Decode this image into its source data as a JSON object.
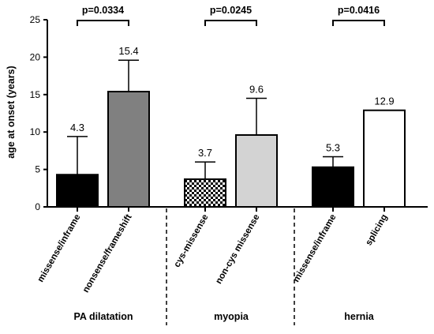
{
  "chart_data": {
    "type": "bar",
    "title": "",
    "xlabel": "",
    "ylabel": "age at onset (years)",
    "ylim": [
      0,
      25
    ],
    "yticks": [
      0,
      5,
      10,
      15,
      20,
      25
    ],
    "grid": false,
    "groups": [
      {
        "label": "PA dilatation",
        "comparison_label": "p=0.0334",
        "bars": [
          {
            "category": "missense/inframe",
            "value": 4.3,
            "value_label": "4.3",
            "error_upper": 9.4,
            "fill": "black"
          },
          {
            "category": "nonsense/frameshift",
            "value": 15.4,
            "value_label": "15.4",
            "error_upper": 19.6,
            "fill": "dark-gray"
          }
        ]
      },
      {
        "label": "myopia",
        "comparison_label": "p=0.0245",
        "bars": [
          {
            "category": "cys-missense",
            "value": 3.7,
            "value_label": "3.7",
            "error_upper": 6.0,
            "fill": "checkered"
          },
          {
            "category": "non-cys missense",
            "value": 9.6,
            "value_label": "9.6",
            "error_upper": 14.5,
            "fill": "light-gray"
          }
        ]
      },
      {
        "label": "hernia",
        "comparison_label": "p=0.0416",
        "bars": [
          {
            "category": "missense/inframe",
            "value": 5.3,
            "value_label": "5.3",
            "error_upper": 6.7,
            "fill": "black"
          },
          {
            "category": "splicing",
            "value": 12.9,
            "value_label": "12.9",
            "error_upper": null,
            "fill": "white"
          }
        ]
      }
    ]
  },
  "colors": {
    "black": "#000000",
    "dark_gray": "#808080",
    "light_gray": "#d3d3d3",
    "white": "#ffffff",
    "axis": "#000000",
    "checker_dark": "#000000",
    "checker_light": "#ffffff"
  }
}
